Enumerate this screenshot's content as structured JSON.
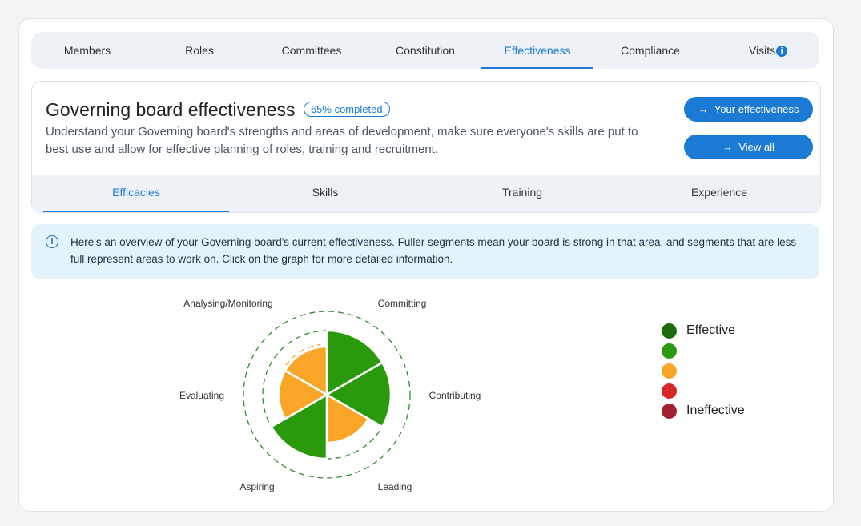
{
  "top_tabs": [
    {
      "label": "Members"
    },
    {
      "label": "Roles"
    },
    {
      "label": "Committees"
    },
    {
      "label": "Constitution"
    },
    {
      "label": "Effectiveness",
      "active": true
    },
    {
      "label": "Compliance"
    },
    {
      "label": "Visits",
      "icon": "info-icon"
    }
  ],
  "header": {
    "title": "Governing board effectiveness",
    "progress": "65% completed",
    "progress_value": 65,
    "description": "Understand your Governing board's strengths and areas of development, make sure everyone's skills are put to best use and allow for effective planning of roles, training and recruitment.",
    "buttons": {
      "your_effectiveness": "Your effectiveness",
      "view_all": "View all",
      "arrow_icon": "arrow-right-icon"
    }
  },
  "sub_tabs": [
    {
      "label": "Efficacies",
      "active": true
    },
    {
      "label": "Skills"
    },
    {
      "label": "Training"
    },
    {
      "label": "Experience"
    }
  ],
  "info": {
    "icon": "info-circle-icon",
    "text": "Here's an overview of your Governing board's current effectiveness. Fuller segments mean your board is strong in that area, and segments that are less full represent areas to work on. Click on the graph for more detailed information."
  },
  "chart_data": {
    "type": "polar-area",
    "categories": [
      "Committing",
      "Contributing",
      "Leading",
      "Aspiring",
      "Evaluating",
      "Analysing/Monitoring"
    ],
    "values": [
      3,
      3,
      2,
      3,
      2,
      2
    ],
    "rating_max": 4,
    "segment_colors": [
      "#2a9a0c",
      "#2a9a0c",
      "#f9a628",
      "#2a9a0c",
      "#f9a628",
      "#f9a628"
    ]
  },
  "legend": {
    "items": [
      {
        "label": "Effective",
        "color": "#1c6d0a"
      },
      {
        "label": "",
        "color": "#2a9a0c"
      },
      {
        "label": "",
        "color": "#f9a628"
      },
      {
        "label": "",
        "color": "#d62728"
      },
      {
        "label": "Ineffective",
        "color": "#a32030"
      }
    ]
  }
}
